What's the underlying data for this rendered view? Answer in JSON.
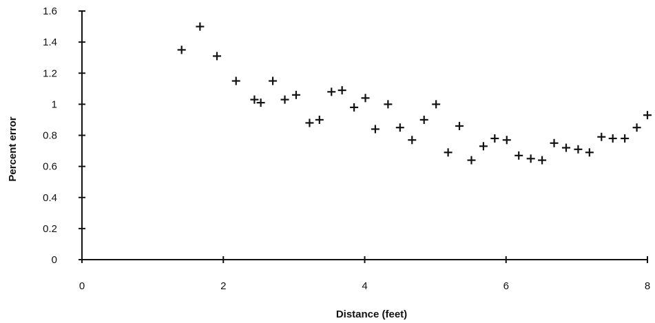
{
  "chart_data": {
    "type": "scatter",
    "title": "",
    "xlabel": "Distance (feet)",
    "ylabel": "Percent error",
    "xlim": [
      0,
      8
    ],
    "ylim": [
      0,
      1.6
    ],
    "xticks": [
      0,
      2,
      4,
      6,
      8
    ],
    "xtick_labels": [
      "0",
      "2",
      "4",
      "6",
      "8"
    ],
    "yticks": [
      0,
      0.2,
      0.4,
      0.6,
      0.8,
      1,
      1.2,
      1.4,
      1.6
    ],
    "ytick_labels": [
      "0",
      "0.2",
      "0.4",
      "0.6",
      "0.8",
      "1",
      "1.2",
      "1.4",
      "1.6"
    ],
    "grid": false,
    "marker": "plus",
    "colors": {
      "ink": "#111111",
      "background": "#ffffff"
    },
    "points": [
      {
        "x": 1.41,
        "y": 1.35
      },
      {
        "x": 1.67,
        "y": 1.5
      },
      {
        "x": 1.91,
        "y": 1.31
      },
      {
        "x": 2.18,
        "y": 1.15
      },
      {
        "x": 2.44,
        "y": 1.03
      },
      {
        "x": 2.53,
        "y": 1.01
      },
      {
        "x": 2.7,
        "y": 1.15
      },
      {
        "x": 2.87,
        "y": 1.03
      },
      {
        "x": 3.03,
        "y": 1.06
      },
      {
        "x": 3.22,
        "y": 0.88
      },
      {
        "x": 3.36,
        "y": 0.9
      },
      {
        "x": 3.53,
        "y": 1.08
      },
      {
        "x": 3.68,
        "y": 1.09
      },
      {
        "x": 3.85,
        "y": 0.98
      },
      {
        "x": 4.01,
        "y": 1.04
      },
      {
        "x": 4.15,
        "y": 0.84
      },
      {
        "x": 4.33,
        "y": 1.0
      },
      {
        "x": 4.5,
        "y": 0.85
      },
      {
        "x": 4.67,
        "y": 0.77
      },
      {
        "x": 4.84,
        "y": 0.9
      },
      {
        "x": 5.01,
        "y": 1.0
      },
      {
        "x": 5.18,
        "y": 0.69
      },
      {
        "x": 5.34,
        "y": 0.86
      },
      {
        "x": 5.51,
        "y": 0.64
      },
      {
        "x": 5.68,
        "y": 0.73
      },
      {
        "x": 5.84,
        "y": 0.78
      },
      {
        "x": 6.01,
        "y": 0.77
      },
      {
        "x": 6.18,
        "y": 0.67
      },
      {
        "x": 6.35,
        "y": 0.65
      },
      {
        "x": 6.51,
        "y": 0.64
      },
      {
        "x": 6.68,
        "y": 0.75
      },
      {
        "x": 6.85,
        "y": 0.72
      },
      {
        "x": 7.02,
        "y": 0.71
      },
      {
        "x": 7.18,
        "y": 0.69
      },
      {
        "x": 7.35,
        "y": 0.79
      },
      {
        "x": 7.51,
        "y": 0.78
      },
      {
        "x": 7.68,
        "y": 0.78
      },
      {
        "x": 7.85,
        "y": 0.85
      },
      {
        "x": 8.0,
        "y": 0.93
      }
    ]
  }
}
